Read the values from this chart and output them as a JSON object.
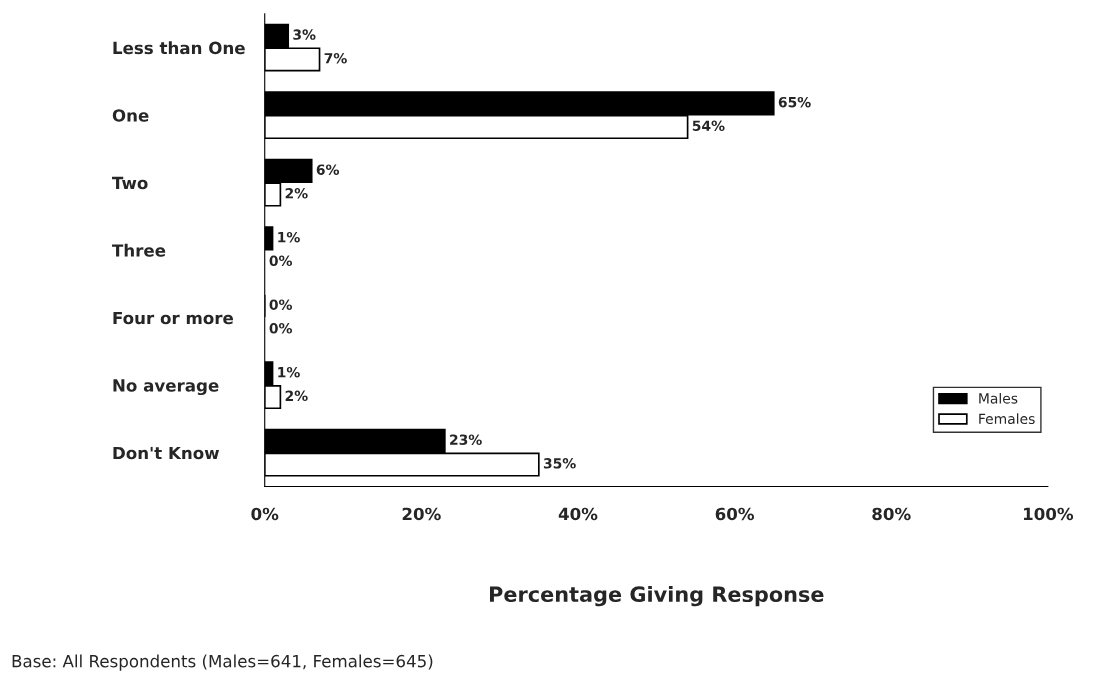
{
  "chart_data": {
    "type": "bar",
    "orientation": "horizontal",
    "xlabel": "Percentage Giving Response",
    "categories": [
      "Less than One",
      "One",
      "Two",
      "Three",
      "Four or more",
      "No average",
      "Don't Know"
    ],
    "series": [
      {
        "name": "Males",
        "color": "#000000",
        "values": [
          3,
          65,
          6,
          1,
          0,
          1,
          23
        ],
        "value_labels": [
          "3%",
          "65%",
          "6%",
          "1%",
          "0%",
          "1%",
          "23%"
        ]
      },
      {
        "name": "Females",
        "color": "#ffffff",
        "values": [
          7,
          54,
          2,
          0,
          0,
          2,
          35
        ],
        "value_labels": [
          "7%",
          "54%",
          "2%",
          "0%",
          "0%",
          "2%",
          "35%"
        ]
      }
    ],
    "xlim": [
      0,
      100
    ],
    "xticks": [
      {
        "value": 0,
        "label": "0%"
      },
      {
        "value": 20,
        "label": "20%"
      },
      {
        "value": 40,
        "label": "40%"
      },
      {
        "value": 60,
        "label": "60%"
      },
      {
        "value": 80,
        "label": "80%"
      },
      {
        "value": 100,
        "label": "100%"
      }
    ],
    "legend": "bottom right",
    "grid": false,
    "annotations": [
      "Base: All Respondents (Males=641, Females=645)"
    ]
  }
}
